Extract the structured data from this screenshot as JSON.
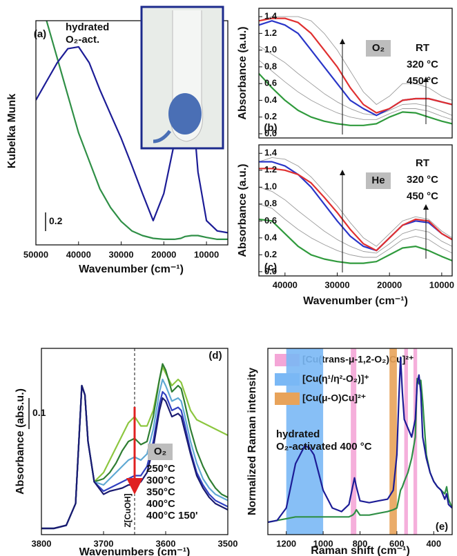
{
  "chart_data": [
    {
      "type": "line",
      "panel_label": "(a)",
      "x_label": "Wavenumber (cm⁻¹)",
      "y_label": "Kubelka Munk",
      "x": [
        50000,
        47500,
        45000,
        42500,
        40000,
        37500,
        35000,
        32500,
        30000,
        27500,
        25000,
        22500,
        20000,
        17500,
        16000,
        15000,
        13500,
        12000,
        10000,
        7500,
        5000
      ],
      "series": [
        {
          "name": "hydrated",
          "color": "#2f8f46",
          "values": [
            null,
            2.4,
            2.0,
            1.6,
            1.2,
            0.9,
            0.6,
            0.4,
            0.25,
            0.15,
            0.1,
            0.07,
            0.06,
            0.06,
            0.07,
            0.09,
            0.1,
            0.1,
            0.08,
            0.06,
            0.06
          ]
        },
        {
          "name": "O₂-act.",
          "color": "#1c1c96",
          "values": [
            1.55,
            1.75,
            1.95,
            2.1,
            2.12,
            1.95,
            1.66,
            1.4,
            1.14,
            0.85,
            0.55,
            0.26,
            0.55,
            1.1,
            1.62,
            1.4,
            1.62,
            0.78,
            0.26,
            0.15,
            0.13
          ]
        }
      ],
      "xlim": [
        50000,
        5000
      ],
      "ylim": [
        0,
        2.4
      ],
      "xticks": [
        50000,
        40000,
        30000,
        20000,
        10000
      ],
      "scale_bar": 0.2
    },
    {
      "type": "line",
      "panel_label": "(b)",
      "y_label": "Absorbance (a.u.)",
      "tag": "O₂",
      "x": [
        45000,
        42500,
        40000,
        37500,
        35000,
        32500,
        30000,
        27500,
        25000,
        22500,
        20000,
        17500,
        15000,
        12500,
        10000,
        8000
      ],
      "series": [
        {
          "color": "#9a9a9a",
          "values": [
            1.35,
            1.4,
            1.4,
            1.4,
            1.35,
            1.2,
            1.0,
            0.75,
            0.5,
            0.35,
            0.45,
            0.6,
            0.6,
            0.55,
            0.45,
            0.4
          ]
        },
        {
          "color": "#9a9a9a",
          "values": [
            1.05,
            0.95,
            0.85,
            0.72,
            0.6,
            0.48,
            0.38,
            0.3,
            0.24,
            0.22,
            0.28,
            0.35,
            0.36,
            0.33,
            0.27,
            0.22
          ]
        },
        {
          "color": "#9a9a9a",
          "values": [
            0.88,
            0.75,
            0.62,
            0.5,
            0.4,
            0.32,
            0.25,
            0.2,
            0.17,
            0.17,
            0.24,
            0.3,
            0.3,
            0.27,
            0.21,
            0.17
          ]
        },
        {
          "name": "RT",
          "color": "#2f9a3c",
          "values": [
            0.72,
            0.55,
            0.4,
            0.28,
            0.2,
            0.15,
            0.12,
            0.1,
            0.1,
            0.12,
            0.2,
            0.26,
            0.25,
            0.2,
            0.15,
            0.12
          ]
        },
        {
          "name": "320 °C",
          "color": "#2a36c8",
          "values": [
            1.3,
            1.35,
            1.3,
            1.2,
            1.0,
            0.8,
            0.6,
            0.4,
            0.3,
            0.22,
            0.3,
            0.4,
            0.42,
            0.42,
            0.38,
            0.35
          ]
        },
        {
          "name": "450 °C",
          "color": "#e03030",
          "values": [
            1.35,
            1.38,
            1.38,
            1.33,
            1.2,
            1.0,
            0.8,
            0.55,
            0.35,
            0.25,
            0.3,
            0.4,
            0.42,
            0.42,
            0.38,
            0.35
          ]
        }
      ],
      "xlim": [
        45000,
        8000
      ],
      "ylim": [
        -0.05,
        1.5
      ],
      "yticks": [
        {
          "value": 0,
          "label": "0.0"
        },
        0.2,
        0.4,
        0.6,
        0.8,
        {
          "value": 1,
          "label": "1.0"
        },
        1.2,
        1.4
      ]
    },
    {
      "type": "line",
      "panel_label": "(c)",
      "x_label": "Wavenumber (cm⁻¹)",
      "y_label": "Absorbance (a.u.)",
      "tag": "He",
      "x": [
        45000,
        42500,
        40000,
        37500,
        35000,
        32500,
        30000,
        27500,
        25000,
        22500,
        20000,
        17500,
        15000,
        12500,
        10000,
        8000
      ],
      "series": [
        {
          "color": "#9a9a9a",
          "values": [
            1.3,
            1.35,
            1.33,
            1.25,
            1.12,
            0.95,
            0.78,
            0.58,
            0.4,
            0.3,
            0.45,
            0.6,
            0.65,
            0.62,
            0.48,
            0.4
          ]
        },
        {
          "color": "#9a9a9a",
          "values": [
            1.0,
            0.95,
            0.85,
            0.72,
            0.6,
            0.48,
            0.38,
            0.3,
            0.24,
            0.22,
            0.33,
            0.45,
            0.5,
            0.47,
            0.36,
            0.3
          ]
        },
        {
          "color": "#9a9a9a",
          "values": [
            0.8,
            0.75,
            0.62,
            0.5,
            0.4,
            0.32,
            0.25,
            0.2,
            0.17,
            0.17,
            0.27,
            0.38,
            0.42,
            0.38,
            0.28,
            0.22
          ]
        },
        {
          "name": "RT",
          "color": "#2f9a3c",
          "values": [
            0.62,
            0.6,
            0.45,
            0.3,
            0.2,
            0.15,
            0.12,
            0.1,
            0.1,
            0.12,
            0.2,
            0.28,
            0.3,
            0.25,
            0.18,
            0.13
          ]
        },
        {
          "name": "320 °C",
          "color": "#2a36c8",
          "values": [
            1.3,
            1.3,
            1.25,
            1.15,
            1.0,
            0.8,
            0.6,
            0.42,
            0.3,
            0.25,
            0.4,
            0.55,
            0.6,
            0.58,
            0.45,
            0.38
          ]
        },
        {
          "name": "450 °C",
          "color": "#e03030",
          "values": [
            1.22,
            1.22,
            1.2,
            1.15,
            1.05,
            0.88,
            0.7,
            0.5,
            0.33,
            0.25,
            0.4,
            0.55,
            0.62,
            0.6,
            0.45,
            0.38
          ]
        }
      ],
      "xlim": [
        45000,
        8000
      ],
      "ylim": [
        -0.05,
        1.5
      ],
      "xticks": [
        40000,
        30000,
        20000,
        10000
      ],
      "yticks": [
        {
          "value": 0,
          "label": "0.0"
        },
        0.2,
        0.4,
        0.6,
        0.8,
        {
          "value": 1,
          "label": "1.0"
        },
        1.2,
        1.4
      ]
    },
    {
      "type": "line",
      "panel_label": "(d)",
      "x_label": "Wavenumbers (cm⁻¹)",
      "y_label": "Absorbance (abs.u.)",
      "tag": "O₂",
      "annotation": "Z[CuOH]",
      "reference_x": 3650,
      "scale_bar": 0.1,
      "x": [
        3800,
        3780,
        3760,
        3745,
        3735,
        3730,
        3725,
        3715,
        3700,
        3690,
        3680,
        3670,
        3660,
        3650,
        3640,
        3630,
        3620,
        3610,
        3605,
        3600,
        3590,
        3580,
        3575,
        3570,
        3560,
        3550,
        3540,
        3530,
        3520,
        3510,
        3500
      ],
      "series": [
        {
          "name": "250°C",
          "color": "#8cc63f",
          "values": [
            0.02,
            0.02,
            0.03,
            0.1,
            0.48,
            0.45,
            0.3,
            0.17,
            0.2,
            0.24,
            0.28,
            0.32,
            0.36,
            0.38,
            0.35,
            0.35,
            0.4,
            0.5,
            0.54,
            0.52,
            0.48,
            0.5,
            0.49,
            0.46,
            0.4,
            0.37,
            0.36,
            0.35,
            0.34,
            0.33,
            0.32
          ]
        },
        {
          "name": "300°C",
          "color": "#2e7d32",
          "values": [
            0.02,
            0.02,
            0.03,
            0.1,
            0.48,
            0.45,
            0.3,
            0.17,
            0.18,
            0.2,
            0.23,
            0.27,
            0.3,
            0.31,
            0.29,
            0.3,
            0.38,
            0.5,
            0.55,
            0.53,
            0.46,
            0.48,
            0.47,
            0.43,
            0.34,
            0.27,
            0.22,
            0.18,
            0.15,
            0.13,
            0.12
          ]
        },
        {
          "name": "350°C",
          "color": "#5fa8d3",
          "values": [
            0.02,
            0.02,
            0.03,
            0.1,
            0.48,
            0.45,
            0.3,
            0.17,
            0.16,
            0.18,
            0.2,
            0.22,
            0.24,
            0.25,
            0.24,
            0.26,
            0.34,
            0.46,
            0.5,
            0.48,
            0.43,
            0.44,
            0.43,
            0.39,
            0.3,
            0.23,
            0.18,
            0.15,
            0.13,
            0.12,
            0.11
          ]
        },
        {
          "name": "400°C",
          "color": "#3040c0",
          "values": [
            0.02,
            0.02,
            0.03,
            0.1,
            0.48,
            0.45,
            0.3,
            0.17,
            0.14,
            0.15,
            0.16,
            0.17,
            0.18,
            0.19,
            0.19,
            0.22,
            0.3,
            0.42,
            0.46,
            0.45,
            0.4,
            0.41,
            0.4,
            0.36,
            0.27,
            0.2,
            0.16,
            0.13,
            0.11,
            0.1,
            0.09
          ]
        },
        {
          "name": "400°C 150'",
          "color": "#1a1a70",
          "values": [
            0.02,
            0.02,
            0.03,
            0.1,
            0.48,
            0.45,
            0.3,
            0.17,
            0.13,
            0.14,
            0.145,
            0.15,
            0.16,
            0.16,
            0.17,
            0.2,
            0.28,
            0.4,
            0.44,
            0.43,
            0.38,
            0.39,
            0.38,
            0.34,
            0.26,
            0.19,
            0.15,
            0.12,
            0.1,
            0.09,
            0.08
          ]
        }
      ],
      "xlim": [
        3800,
        3500
      ],
      "ylim": [
        0,
        0.6
      ],
      "xticks": [
        3800,
        3700,
        3600,
        3500
      ]
    },
    {
      "type": "line",
      "panel_label": "(e)",
      "x_label": "Raman shift (cm⁻¹)",
      "y_label": "Normalized Raman intensity",
      "highlights": [
        {
          "name": "[Cu(trans-μ-1,2-O₂)Cu]²⁺",
          "color": "#f4a6d7",
          "ranges": [
            [
              850,
              820
            ],
            [
              560,
              540
            ],
            [
              510,
              490
            ]
          ]
        },
        {
          "name": "[Cu(η¹/η²-O₂)]⁺",
          "color": "#7ab8f5",
          "ranges": [
            [
              1200,
              1000
            ]
          ]
        },
        {
          "name": "[Cu(μ-O)Cu]²⁺",
          "color": "#e8a35a",
          "ranges": [
            [
              640,
              600
            ]
          ]
        }
      ],
      "x": [
        1300,
        1250,
        1200,
        1150,
        1100,
        1075,
        1050,
        1000,
        950,
        900,
        860,
        840,
        830,
        820,
        800,
        750,
        700,
        650,
        620,
        600,
        590,
        580,
        570,
        560,
        540,
        520,
        500,
        490,
        480,
        470,
        460,
        440,
        420,
        400,
        380,
        360,
        340,
        330,
        320,
        300
      ],
      "series": [
        {
          "name": "hydrated",
          "color": "#2f8f46",
          "values": [
            0.02,
            0.03,
            0.04,
            0.05,
            0.05,
            0.05,
            0.05,
            0.05,
            0.05,
            0.05,
            0.05,
            0.06,
            0.07,
            0.09,
            0.06,
            0.06,
            0.07,
            0.08,
            0.09,
            0.1,
            0.15,
            0.2,
            0.22,
            0.25,
            0.3,
            0.38,
            0.5,
            0.83,
            0.8,
            0.82,
            0.7,
            0.4,
            0.3,
            0.25,
            0.22,
            0.2,
            0.18,
            0.22,
            0.15,
            0.1
          ]
        },
        {
          "name": "O₂-activated 400 °C",
          "color": "#1c1c96",
          "values": [
            0.02,
            0.03,
            0.1,
            0.35,
            0.45,
            0.44,
            0.4,
            0.2,
            0.1,
            0.08,
            0.12,
            0.22,
            0.27,
            0.22,
            0.14,
            0.13,
            0.14,
            0.15,
            0.2,
            0.4,
            0.7,
            0.95,
            0.75,
            0.6,
            0.55,
            0.5,
            0.6,
            0.8,
            0.85,
            0.75,
            0.5,
            0.38,
            0.3,
            0.25,
            0.22,
            0.2,
            0.15,
            0.18,
            0.12,
            0.1
          ]
        }
      ],
      "xlim": [
        1300,
        300
      ],
      "ylim": [
        -0.05,
        1.0
      ],
      "xticks": [
        1200,
        1000,
        800,
        600,
        400
      ]
    }
  ]
}
